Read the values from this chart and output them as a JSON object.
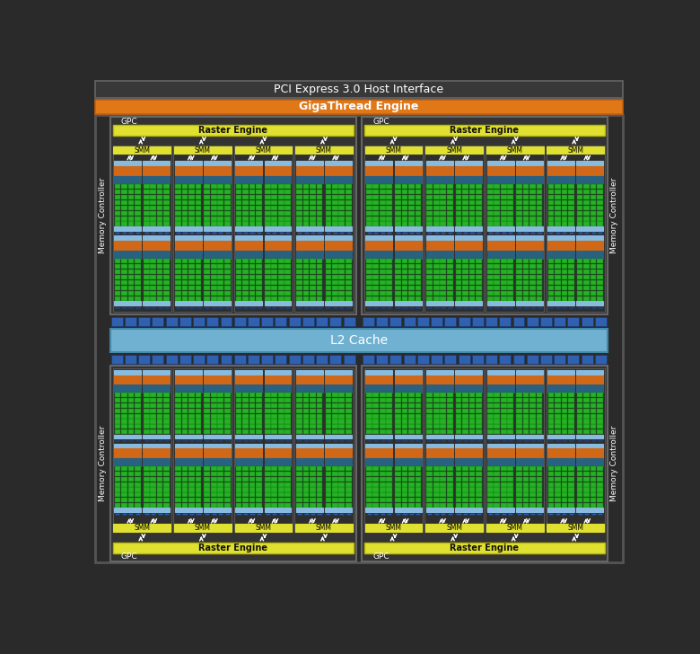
{
  "bg_color": "#2a2a2a",
  "border_color": "#555555",
  "pci_text": "PCI Express 3.0 Host Interface",
  "pci_bg": "#383838",
  "pci_border": "#666666",
  "gigathread_text": "GigaThread Engine",
  "gigathread_bg": "#e07818",
  "gigathread_border": "#c06010",
  "gpc_bg": "#333333",
  "gpc_border": "#666666",
  "raster_bg": "#e0e030",
  "raster_border": "#b8b800",
  "smm_label_bg": "#e0e030",
  "l2_bg": "#70b0d0",
  "l2_border": "#4488aa",
  "l2_text": "L2 Cache",
  "mem_ctrl_text": "Memory Controller",
  "blue_cell_color": "#3060b0",
  "blue_cell_border": "#1a3a70",
  "smm_bg": "#2e2e2e",
  "smm_border": "#555555",
  "col_bg": "#2a2a2a",
  "light_blue": "#88bbdd",
  "orange1": "#d06818",
  "orange2": "#b85010",
  "teal1": "#2a6080",
  "teal2": "#1e4860",
  "green_core": "#28b028",
  "green_border": "#008800",
  "bot_lb": "#88bbdd",
  "bot_db": "#2a5090",
  "arrow_color": "#ffffff"
}
